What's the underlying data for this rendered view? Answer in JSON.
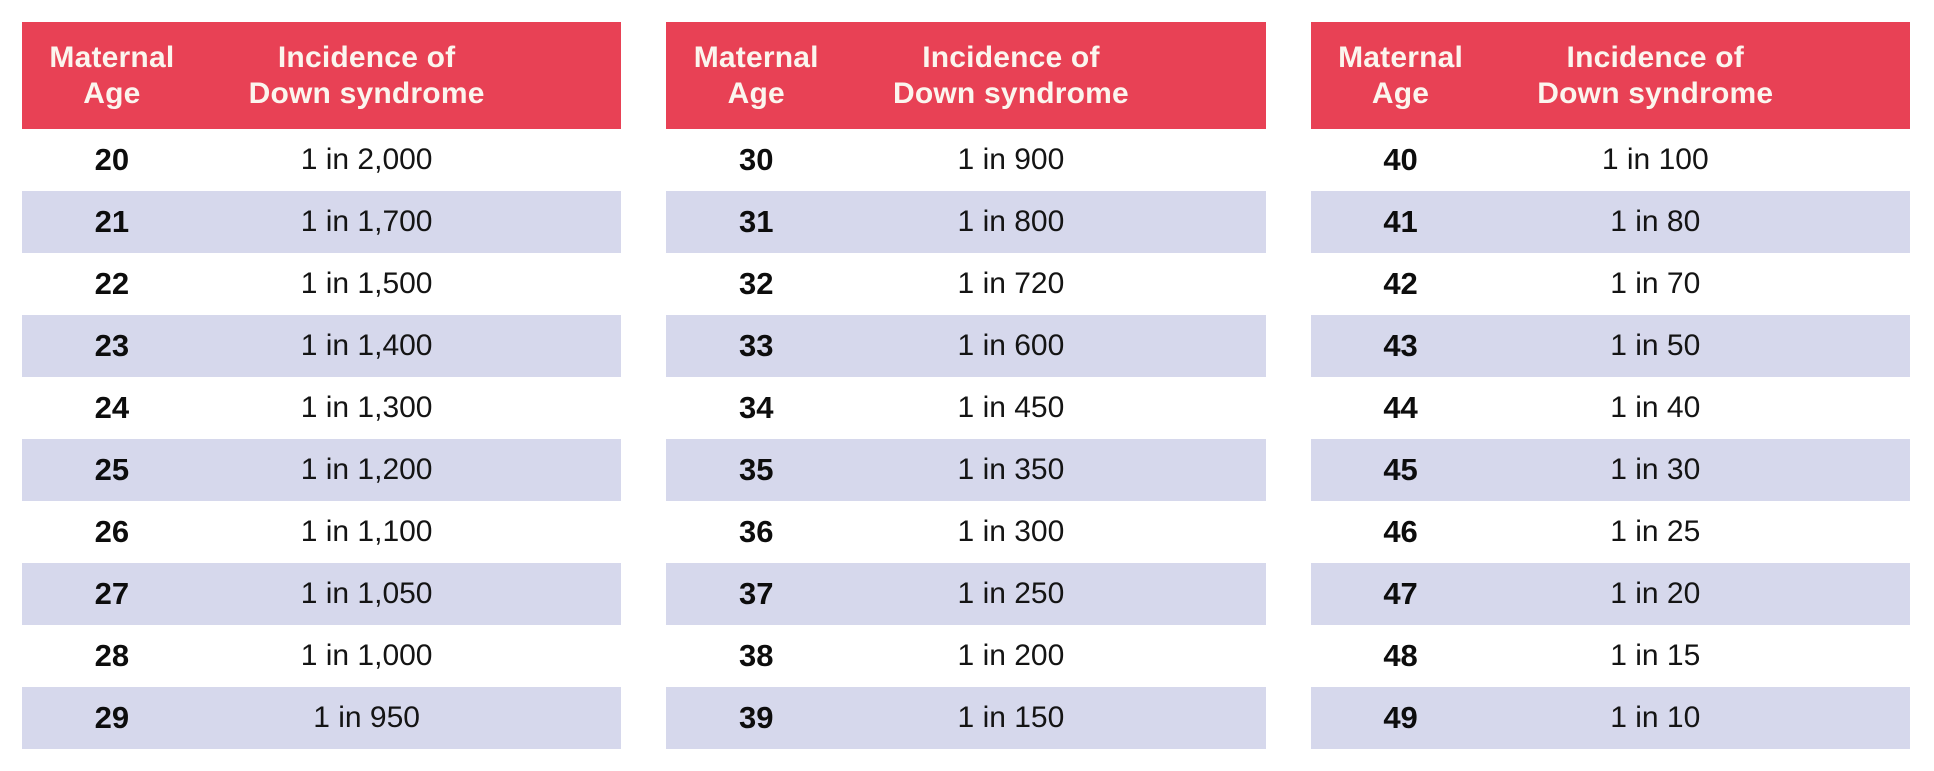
{
  "colors": {
    "header_bg": "#e84155",
    "header_text": "#fbf5ee",
    "row_bg": "#ffffff",
    "row_alt_bg": "#d6d8ec",
    "body_text": "#121212"
  },
  "header": {
    "col1_line1": "Maternal",
    "col1_line2": "Age",
    "col2_line1": "Incidence of",
    "col2_line2": "Down syndrome"
  },
  "tables": [
    {
      "rows": [
        {
          "age": "20",
          "incidence": "1 in 2,000"
        },
        {
          "age": "21",
          "incidence": "1 in 1,700"
        },
        {
          "age": "22",
          "incidence": "1 in 1,500"
        },
        {
          "age": "23",
          "incidence": "1 in 1,400"
        },
        {
          "age": "24",
          "incidence": "1 in 1,300"
        },
        {
          "age": "25",
          "incidence": "1 in 1,200"
        },
        {
          "age": "26",
          "incidence": "1 in 1,100"
        },
        {
          "age": "27",
          "incidence": "1 in 1,050"
        },
        {
          "age": "28",
          "incidence": "1 in 1,000"
        },
        {
          "age": "29",
          "incidence": "1 in 950"
        }
      ]
    },
    {
      "rows": [
        {
          "age": "30",
          "incidence": "1 in 900"
        },
        {
          "age": "31",
          "incidence": "1 in 800"
        },
        {
          "age": "32",
          "incidence": "1 in 720"
        },
        {
          "age": "33",
          "incidence": "1 in 600"
        },
        {
          "age": "34",
          "incidence": "1 in 450"
        },
        {
          "age": "35",
          "incidence": "1 in 350"
        },
        {
          "age": "36",
          "incidence": "1 in 300"
        },
        {
          "age": "37",
          "incidence": "1 in 250"
        },
        {
          "age": "38",
          "incidence": "1 in 200"
        },
        {
          "age": "39",
          "incidence": "1 in 150"
        }
      ]
    },
    {
      "rows": [
        {
          "age": "40",
          "incidence": "1 in 100"
        },
        {
          "age": "41",
          "incidence": "1 in 80"
        },
        {
          "age": "42",
          "incidence": "1 in 70"
        },
        {
          "age": "43",
          "incidence": "1 in 50"
        },
        {
          "age": "44",
          "incidence": "1 in 40"
        },
        {
          "age": "45",
          "incidence": "1 in 30"
        },
        {
          "age": "46",
          "incidence": "1 in 25"
        },
        {
          "age": "47",
          "incidence": "1 in 20"
        },
        {
          "age": "48",
          "incidence": "1 in 15"
        },
        {
          "age": "49",
          "incidence": "1 in 10"
        }
      ]
    }
  ],
  "chart_data": {
    "type": "table",
    "title": "",
    "columns": [
      "Maternal Age",
      "Incidence of Down syndrome"
    ],
    "rows": [
      [
        20,
        "1 in 2,000"
      ],
      [
        21,
        "1 in 1,700"
      ],
      [
        22,
        "1 in 1,500"
      ],
      [
        23,
        "1 in 1,400"
      ],
      [
        24,
        "1 in 1,300"
      ],
      [
        25,
        "1 in 1,200"
      ],
      [
        26,
        "1 in 1,100"
      ],
      [
        27,
        "1 in 1,050"
      ],
      [
        28,
        "1 in 1,000"
      ],
      [
        29,
        "1 in 950"
      ],
      [
        30,
        "1 in 900"
      ],
      [
        31,
        "1 in 800"
      ],
      [
        32,
        "1 in 720"
      ],
      [
        33,
        "1 in 600"
      ],
      [
        34,
        "1 in 450"
      ],
      [
        35,
        "1 in 350"
      ],
      [
        36,
        "1 in 300"
      ],
      [
        37,
        "1 in 250"
      ],
      [
        38,
        "1 in 200"
      ],
      [
        39,
        "1 in 150"
      ],
      [
        40,
        "1 in 100"
      ],
      [
        41,
        "1 in 80"
      ],
      [
        42,
        "1 in 70"
      ],
      [
        43,
        "1 in 50"
      ],
      [
        44,
        "1 in 40"
      ],
      [
        45,
        "1 in 30"
      ],
      [
        46,
        "1 in 25"
      ],
      [
        47,
        "1 in 20"
      ],
      [
        48,
        "1 in 15"
      ],
      [
        49,
        "1 in 10"
      ]
    ],
    "incidence_denominators": [
      2000,
      1700,
      1500,
      1400,
      1300,
      1200,
      1100,
      1050,
      1000,
      950,
      900,
      800,
      720,
      600,
      450,
      350,
      300,
      250,
      200,
      150,
      100,
      80,
      70,
      50,
      40,
      30,
      25,
      20,
      15,
      10
    ],
    "layout": "three side-by-side tables: ages 20-29, 30-39, 40-49; alternating row shading"
  }
}
